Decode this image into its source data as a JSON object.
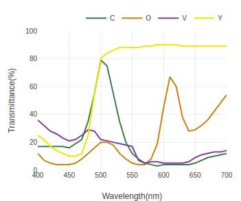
{
  "chart_data": {
    "type": "line",
    "xlabel": "Wavelength(nm)",
    "ylabel": "Transmittance(%)",
    "x": [
      400,
      410,
      420,
      430,
      440,
      450,
      460,
      470,
      480,
      490,
      500,
      510,
      520,
      530,
      540,
      550,
      560,
      570,
      580,
      590,
      600,
      610,
      620,
      630,
      640,
      650,
      660,
      670,
      680,
      690,
      700
    ],
    "series": [
      {
        "name": "C",
        "color": "#3a7d44",
        "values": [
          17,
          17,
          17,
          17,
          17,
          16,
          19,
          22,
          35,
          55,
          79,
          75,
          55,
          35,
          20,
          12,
          8,
          5,
          4,
          3,
          4,
          4,
          4,
          4,
          4,
          5,
          7,
          9,
          10,
          11,
          12
        ]
      },
      {
        "name": "O",
        "color": "#c8820a",
        "values": [
          12,
          7,
          5,
          4,
          4,
          4,
          5,
          8,
          12,
          16,
          20,
          20,
          18,
          12,
          8,
          5,
          4,
          4,
          8,
          19,
          45,
          67,
          60,
          38,
          28,
          29,
          32,
          36,
          42,
          48,
          54
        ]
      },
      {
        "name": "V",
        "color": "#7b3fa0",
        "values": [
          36,
          32,
          28,
          26,
          23,
          21,
          22,
          25,
          29,
          28,
          22,
          21,
          20,
          19,
          18,
          17,
          7,
          5,
          6,
          6,
          5,
          5,
          5,
          5,
          6,
          9,
          11,
          12,
          13,
          13,
          14
        ]
      },
      {
        "name": "Y",
        "color": "#e8e800",
        "values": [
          25,
          22,
          17,
          14,
          12,
          10,
          10,
          12,
          25,
          55,
          80,
          84,
          86,
          88,
          88,
          88,
          88,
          89,
          89,
          90,
          90,
          90,
          90,
          89,
          89,
          89,
          89,
          89,
          89,
          89,
          89
        ]
      }
    ],
    "xlim": [
      400,
      700
    ],
    "ylim": [
      0,
      100
    ],
    "xticks": [
      400,
      450,
      500,
      550,
      600,
      650,
      700
    ],
    "yticks": [
      0,
      20,
      40,
      60,
      80,
      100
    ],
    "grid": true,
    "legend": "upper right"
  }
}
